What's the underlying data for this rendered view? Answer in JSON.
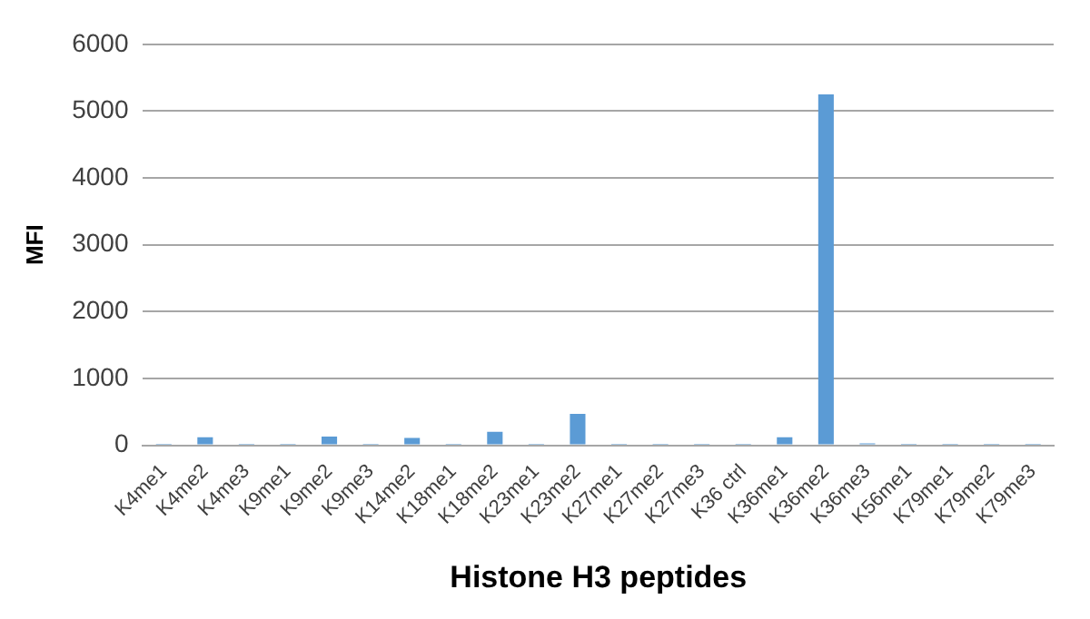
{
  "chart_data": {
    "type": "bar",
    "xlabel": "Histone H3 peptides",
    "ylabel": "MFI",
    "categories": [
      "K4me1",
      "K4me2",
      "K4me3",
      "K9me1",
      "K9me2",
      "K9me3",
      "K14me2",
      "K18me1",
      "K18me2",
      "K23me1",
      "K23me2",
      "K27me1",
      "K27me2",
      "K27me3",
      "K36 ctrl",
      "K36me1",
      "K36me2",
      "K36me3",
      "K56me1",
      "K79me1",
      "K79me2",
      "K79me3"
    ],
    "values": [
      20,
      120,
      20,
      20,
      130,
      20,
      110,
      20,
      200,
      20,
      470,
      20,
      20,
      20,
      20,
      120,
      5250,
      30,
      20,
      20,
      20,
      20
    ],
    "color": "#5b9bd5",
    "ylim": [
      0,
      6000
    ],
    "yticks": [
      0,
      1000,
      2000,
      3000,
      4000,
      5000,
      6000
    ],
    "grid": "y",
    "legend": false
  }
}
